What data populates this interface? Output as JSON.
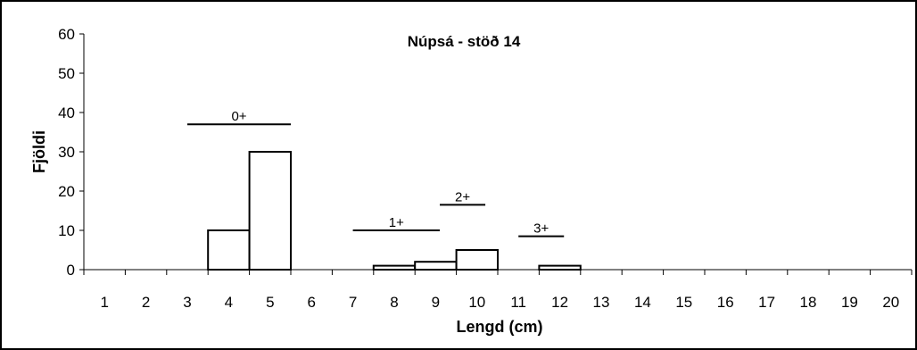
{
  "chart_data": {
    "type": "bar",
    "title": "Núpsá - stöð 14",
    "xlabel": "Lengd (cm)",
    "ylabel": "Fjöldi",
    "ylim": [
      0,
      60
    ],
    "yticks": [
      "0",
      "10",
      "20",
      "30",
      "40",
      "50",
      "60"
    ],
    "categories": [
      "1",
      "2",
      "3",
      "4",
      "5",
      "6",
      "7",
      "8",
      "9",
      "10",
      "11",
      "12",
      "13",
      "14",
      "15",
      "16",
      "17",
      "18",
      "19",
      "20"
    ],
    "values": [
      0,
      0,
      0,
      10,
      30,
      0,
      0,
      1,
      2,
      5,
      0,
      1,
      0,
      0,
      0,
      0,
      0,
      0,
      0,
      0
    ],
    "grid": false,
    "legend": "none",
    "bar_fill": "#ffffff",
    "bar_stroke": "#000000",
    "annotations": [
      {
        "label": "0+",
        "from_cat": 3.5,
        "to_cat": 6.0,
        "level": 37
      },
      {
        "label": "1+",
        "from_cat": 7.5,
        "to_cat": 9.6,
        "level": 10
      },
      {
        "label": "2+",
        "from_cat": 9.6,
        "to_cat": 10.7,
        "level": 16.5
      },
      {
        "label": "3+",
        "from_cat": 11.5,
        "to_cat": 12.6,
        "level": 8.5
      }
    ]
  }
}
